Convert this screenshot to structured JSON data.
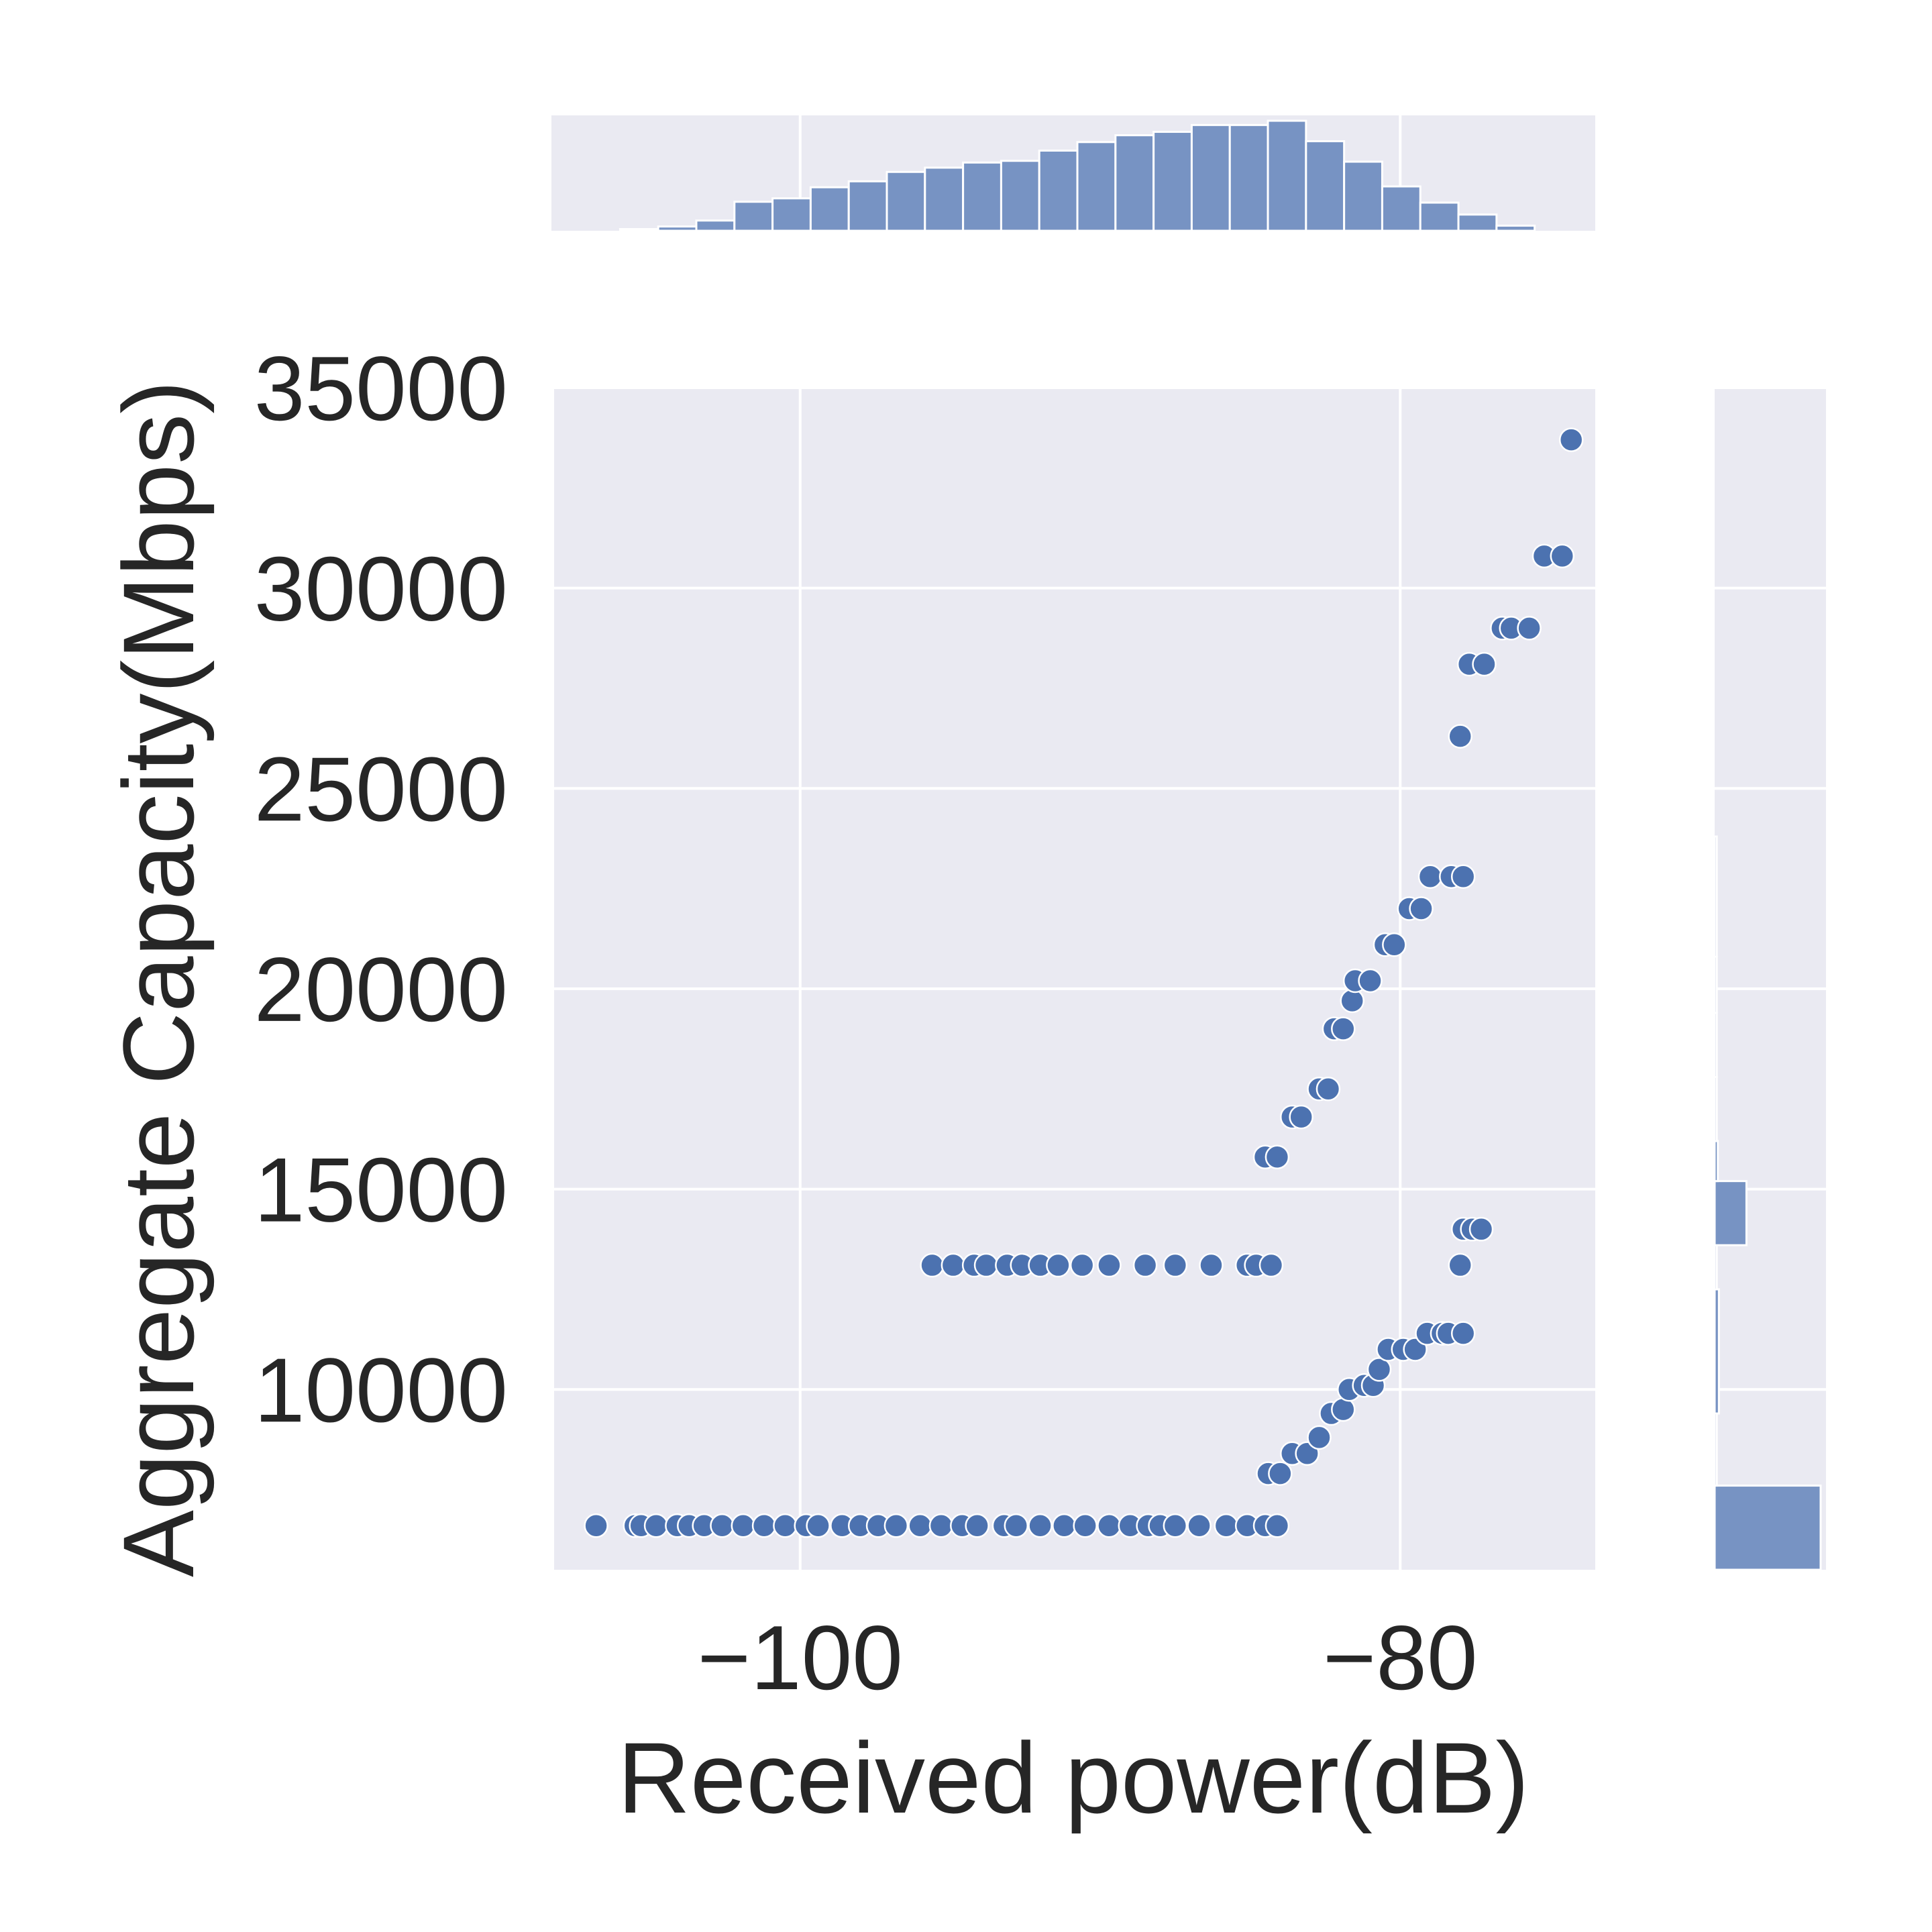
{
  "chart_data": {
    "type": "scatter",
    "xlabel": "Received power(dB)",
    "ylabel": "Aggregate Capacity(Mbps)",
    "xlim": [
      -108.2,
      -73.5
    ],
    "ylim": [
      5500,
      35000
    ],
    "xticks": [
      -100,
      -80
    ],
    "xtick_labels": [
      "−100",
      "−80"
    ],
    "yticks": [
      10000,
      15000,
      20000,
      25000,
      30000,
      35000
    ],
    "ytick_labels": [
      "10000",
      "15000",
      "20000",
      "25000",
      "30000",
      "35000"
    ],
    "grid": true,
    "color": "#4c72b0",
    "hist_color": "#7793c3",
    "series": [
      {
        "points": [
          [
            -106.8,
            6600
          ],
          [
            -105.5,
            6600
          ],
          [
            -105.3,
            6600
          ],
          [
            -104.8,
            6600
          ],
          [
            -104.1,
            6600
          ],
          [
            -103.7,
            6600
          ],
          [
            -103.2,
            6600
          ],
          [
            -102.6,
            6600
          ],
          [
            -101.9,
            6600
          ],
          [
            -101.2,
            6600
          ],
          [
            -100.5,
            6600
          ],
          [
            -99.8,
            6600
          ],
          [
            -99.4,
            6600
          ],
          [
            -98.6,
            6600
          ],
          [
            -98.0,
            6600
          ],
          [
            -97.4,
            6600
          ],
          [
            -96.8,
            6600
          ],
          [
            -96.0,
            6600
          ],
          [
            -95.3,
            6600
          ],
          [
            -94.6,
            6600
          ],
          [
            -94.1,
            6600
          ],
          [
            -93.2,
            6600
          ],
          [
            -92.8,
            6600
          ],
          [
            -92.0,
            6600
          ],
          [
            -91.2,
            6600
          ],
          [
            -90.5,
            6600
          ],
          [
            -89.7,
            6600
          ],
          [
            -89.0,
            6600
          ],
          [
            -88.4,
            6600
          ],
          [
            -88.0,
            6600
          ],
          [
            -87.5,
            6600
          ],
          [
            -86.7,
            6600
          ],
          [
            -85.8,
            6600
          ],
          [
            -85.1,
            6600
          ],
          [
            -84.5,
            6600
          ],
          [
            -84.1,
            6600
          ],
          [
            -95.6,
            13100
          ],
          [
            -94.9,
            13100
          ],
          [
            -94.2,
            13100
          ],
          [
            -93.8,
            13100
          ],
          [
            -93.1,
            13100
          ],
          [
            -92.6,
            13100
          ],
          [
            -92.0,
            13100
          ],
          [
            -91.4,
            13100
          ],
          [
            -90.6,
            13100
          ],
          [
            -89.7,
            13100
          ],
          [
            -88.5,
            13100
          ],
          [
            -87.5,
            13100
          ],
          [
            -86.3,
            13100
          ],
          [
            -85.1,
            13100
          ],
          [
            -84.8,
            13100
          ],
          [
            -84.3,
            13100
          ],
          [
            -84.4,
            7900
          ],
          [
            -84.0,
            7900
          ],
          [
            -83.6,
            8400
          ],
          [
            -83.1,
            8400
          ],
          [
            -82.7,
            8800
          ],
          [
            -82.3,
            9400
          ],
          [
            -81.9,
            9500
          ],
          [
            -81.7,
            10000
          ],
          [
            -81.2,
            10100
          ],
          [
            -80.9,
            10100
          ],
          [
            -80.7,
            10500
          ],
          [
            -80.4,
            11000
          ],
          [
            -79.9,
            11000
          ],
          [
            -79.5,
            11000
          ],
          [
            -79.1,
            11400
          ],
          [
            -78.6,
            11400
          ],
          [
            -78.4,
            11400
          ],
          [
            -77.9,
            11400
          ],
          [
            -78.0,
            13100
          ],
          [
            -77.9,
            14000
          ],
          [
            -77.6,
            14000
          ],
          [
            -77.3,
            14000
          ],
          [
            -84.5,
            15800
          ],
          [
            -84.1,
            15800
          ],
          [
            -83.6,
            16800
          ],
          [
            -83.3,
            16800
          ],
          [
            -82.7,
            17500
          ],
          [
            -82.4,
            17500
          ],
          [
            -82.2,
            19000
          ],
          [
            -81.9,
            19000
          ],
          [
            -81.6,
            19700
          ],
          [
            -81.5,
            20200
          ],
          [
            -81.0,
            20200
          ],
          [
            -80.5,
            21100
          ],
          [
            -80.2,
            21100
          ],
          [
            -79.7,
            22000
          ],
          [
            -79.3,
            22000
          ],
          [
            -79.0,
            22800
          ],
          [
            -78.3,
            22800
          ],
          [
            -77.9,
            22800
          ],
          [
            -78.0,
            26300
          ],
          [
            -77.7,
            28100
          ],
          [
            -77.2,
            28100
          ],
          [
            -76.6,
            29000
          ],
          [
            -76.3,
            29000
          ],
          [
            -75.7,
            29000
          ],
          [
            -75.2,
            30800
          ],
          [
            -74.6,
            30800
          ],
          [
            -74.3,
            33700
          ]
        ]
      }
    ],
    "marginal_x_hist": {
      "bin_start": -106.0,
      "bin_width": 1.27,
      "counts": [
        0.02,
        0.05,
        0.12,
        0.34,
        0.38,
        0.51,
        0.58,
        0.69,
        0.74,
        0.8,
        0.82,
        0.94,
        1.04,
        1.12,
        1.16,
        1.24,
        1.24,
        1.29,
        1.05,
        0.81,
        0.52,
        0.33,
        0.19,
        0.06
      ]
    },
    "marginal_y_hist": {
      "bin_edges": [
        5500,
        7600,
        9400,
        12500,
        13600,
        15200,
        16200,
        17800,
        19400,
        20800,
        23800
      ],
      "counts": [
        1.0,
        0.02,
        0.04,
        0.02,
        0.3,
        0.03,
        0.02,
        0.02,
        0.02,
        0.02
      ]
    }
  }
}
